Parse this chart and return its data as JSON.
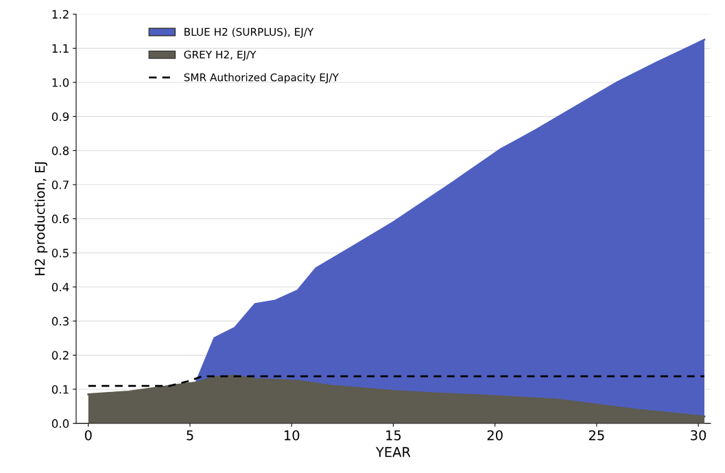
{
  "chart_data": {
    "type": "area",
    "xlabel": "YEAR",
    "ylabel": "H2 production, EJ",
    "xlim": [
      -0.6,
      30.6
    ],
    "ylim": [
      0.0,
      1.2
    ],
    "xticks": [
      0,
      5,
      10,
      15,
      20,
      25,
      30
    ],
    "yticks": [
      {
        "value": 0,
        "label": "0.0"
      },
      0.1,
      0.2,
      0.3,
      0.4,
      0.5,
      0.6,
      0.7,
      0.8,
      0.9,
      {
        "value": 1,
        "label": "1.0"
      },
      1.1,
      1.2
    ],
    "grid": "y",
    "legend": "top left",
    "series": [
      {
        "name": "BLUE H2 (SURPLUS), EJ/Y",
        "color": "#4f5fc0",
        "x": [
          5.3,
          6.2,
          7.2,
          8.2,
          9.2,
          10.3,
          11.2,
          12.2,
          15,
          18,
          20.3,
          22,
          24,
          26,
          28,
          30.3
        ],
        "values": [
          0.12,
          0.25,
          0.28,
          0.35,
          0.36,
          0.39,
          0.455,
          0.49,
          0.59,
          0.71,
          0.805,
          0.86,
          0.93,
          1.0,
          1.06,
          1.125
        ]
      },
      {
        "name": "GREY H2, EJ/Y",
        "color": "#5e5c50",
        "x": [
          0,
          2,
          4,
          5.3,
          6.2,
          7.2,
          8.2,
          10.3,
          12,
          15,
          17,
          20,
          23,
          25,
          27,
          30.3
        ],
        "values": [
          0.085,
          0.093,
          0.11,
          0.12,
          0.135,
          0.14,
          0.13,
          0.125,
          0.11,
          0.095,
          0.088,
          0.08,
          0.07,
          0.055,
          0.04,
          0.02
        ]
      },
      {
        "name": "SMR Authorized Capacity EJ/Y",
        "type": "line",
        "line_style": "dashed",
        "color": "#000000",
        "x": [
          0,
          4,
          5,
          5.6,
          30.3
        ],
        "values": [
          0.11,
          0.11,
          0.125,
          0.138,
          0.138
        ]
      }
    ]
  }
}
